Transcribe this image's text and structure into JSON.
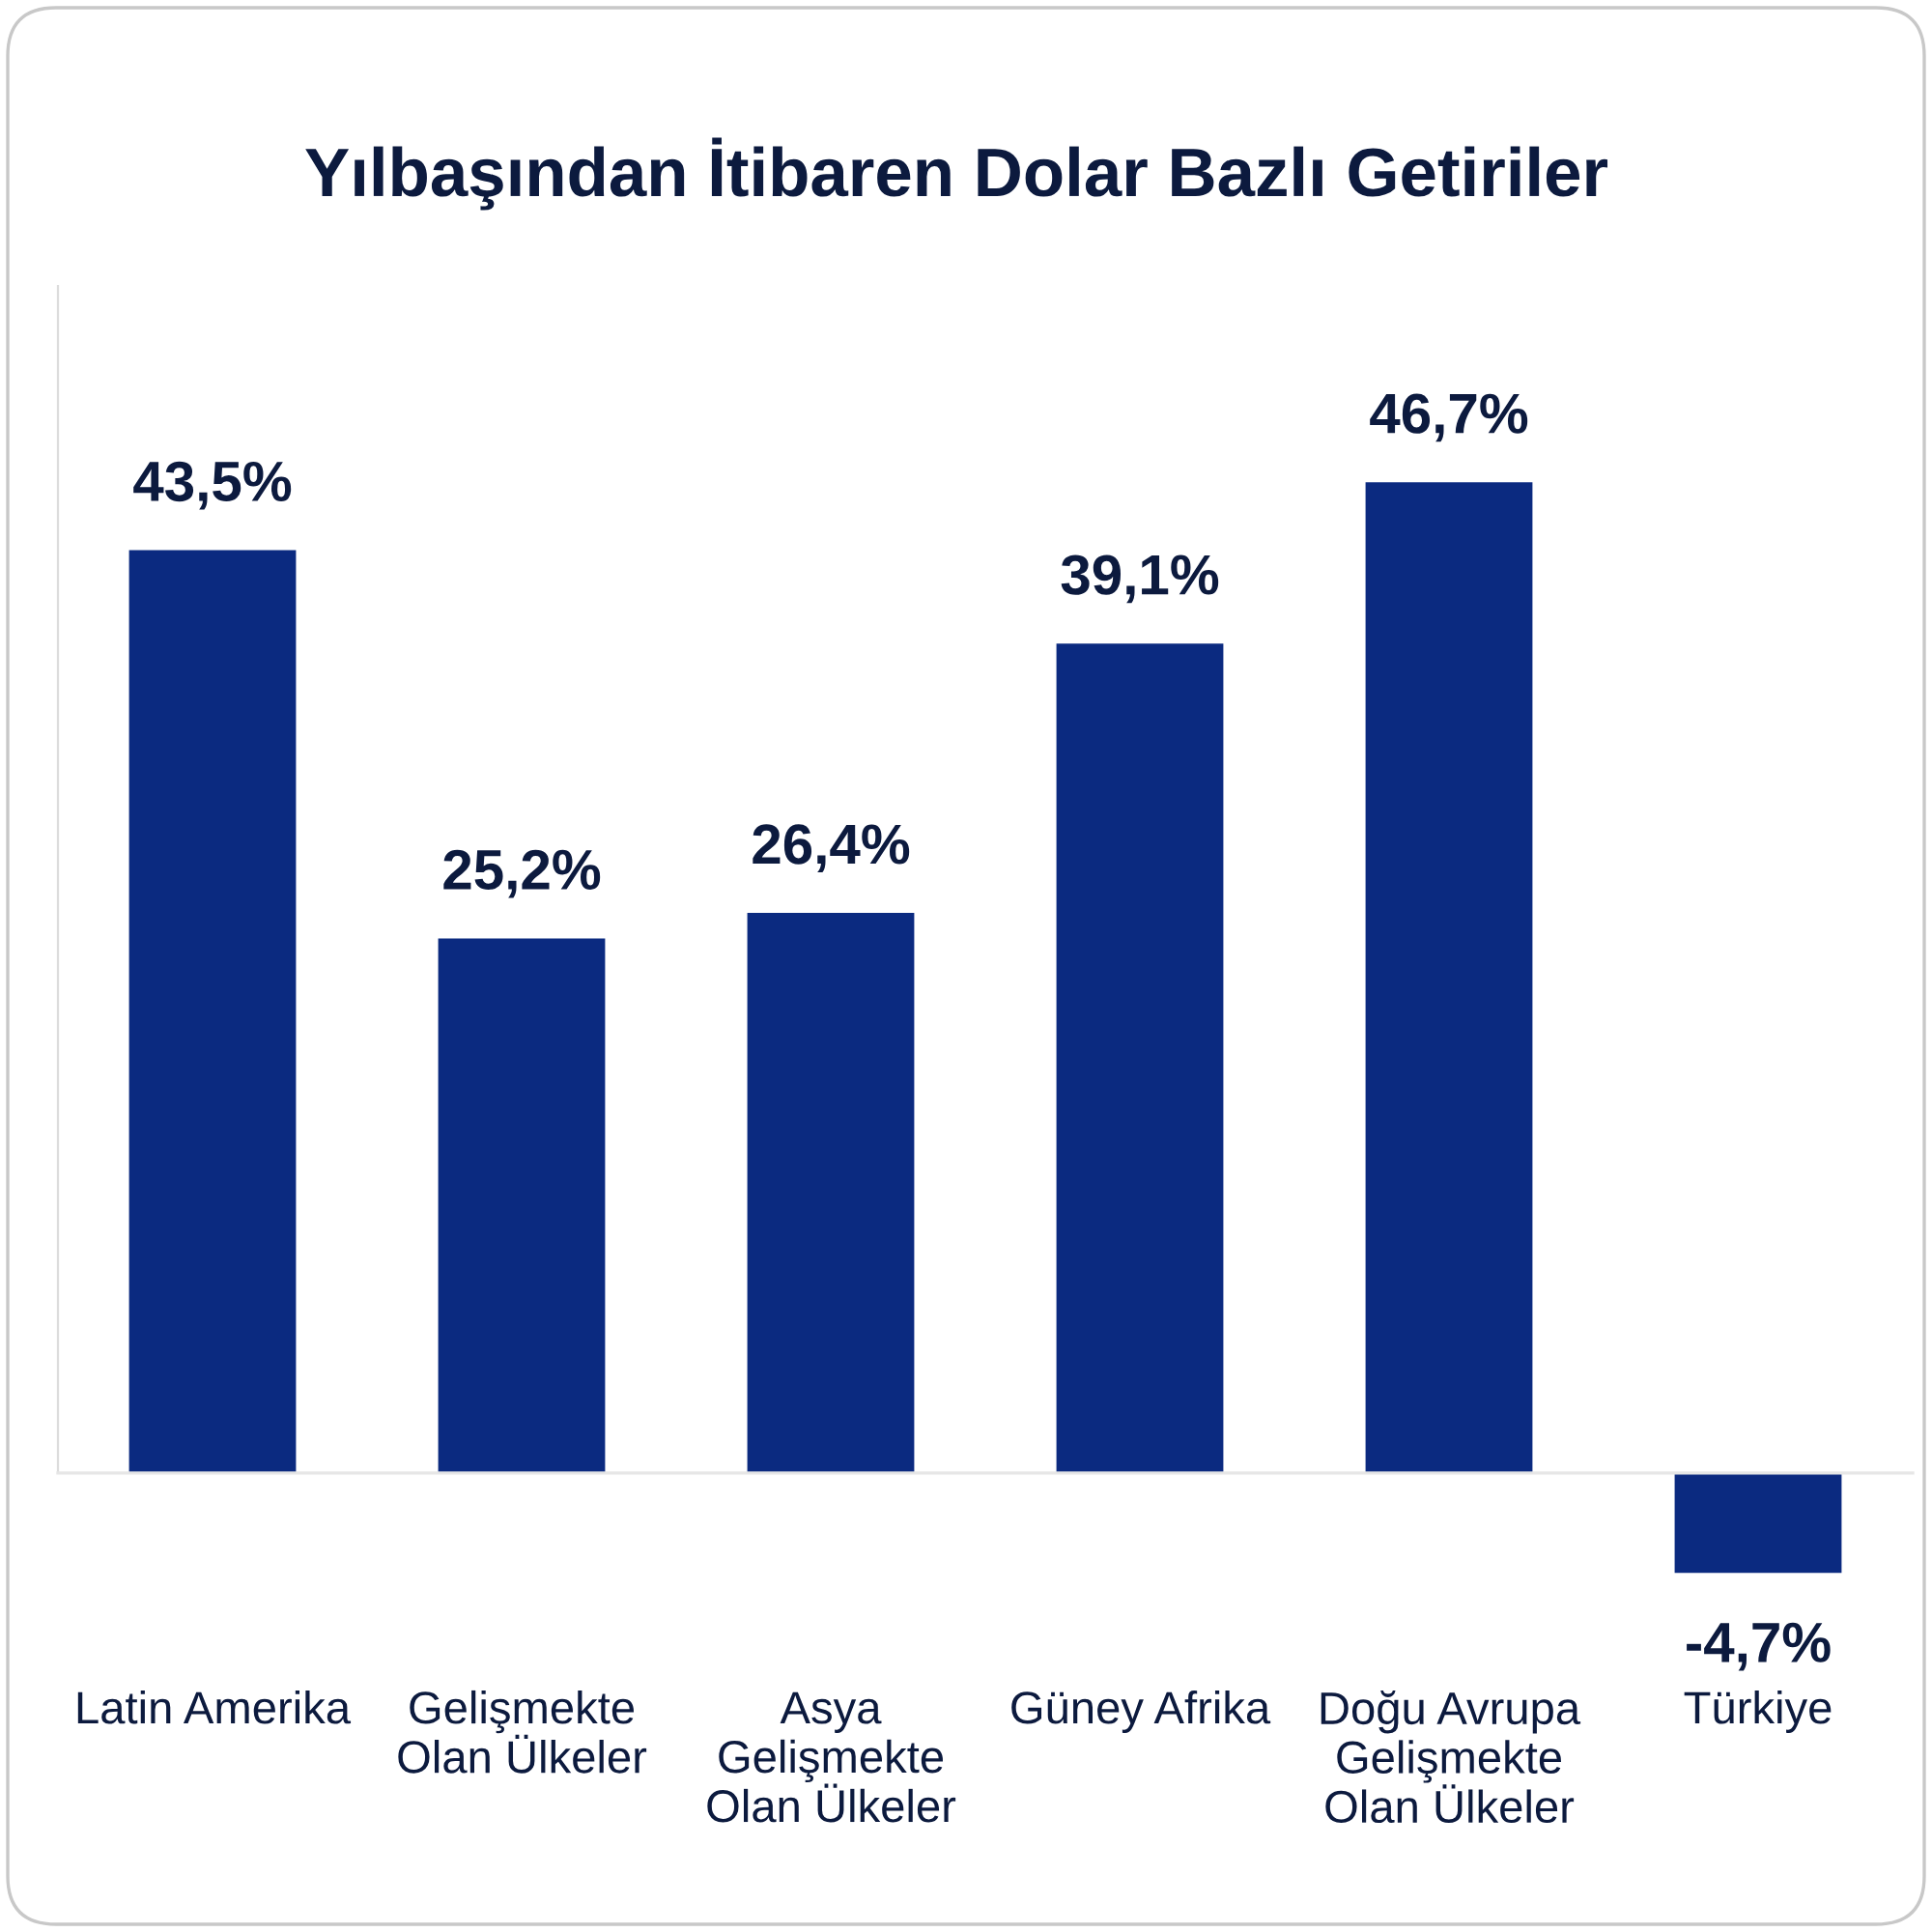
{
  "chart_data": {
    "type": "bar",
    "title": "Yılbaşından İtibaren Dolar Bazlı Getiriler",
    "categories": [
      "Latin Amerika",
      "Gelişmekte\nOlan Ülkeler",
      "Asya\nGelişmekte\nOlan Ülkeler",
      "Güney Afrika",
      "Doğu Avrupa\nGelişmekte\nOlan Ülkeler",
      "Türkiye"
    ],
    "values": [
      43.5,
      25.2,
      26.4,
      39.1,
      46.7,
      -4.7
    ],
    "value_labels": [
      "43,5%",
      "25,2%",
      "26,4%",
      "39,1%",
      "46,7%",
      "-4,7%"
    ],
    "color": "#0b2a80",
    "tick_labels": "x"
  }
}
